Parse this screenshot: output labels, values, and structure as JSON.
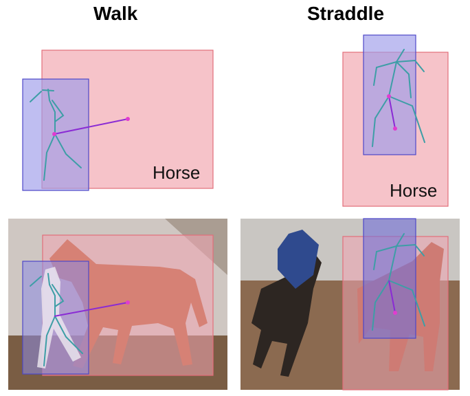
{
  "titles": {
    "left": "Walk",
    "right": "Straddle"
  },
  "labels": {
    "horse_left": "Horse",
    "horse_right": "Horse"
  },
  "colors": {
    "horse_box_fill": "#f4b9c0",
    "horse_box_stroke": "#e36d7a",
    "person_box_fill": "#9c9be9",
    "person_box_stroke": "#4d47c8",
    "skeleton": "#3d9ea6",
    "link": "#8a2bd4",
    "center_dot": "#e13ccf"
  }
}
